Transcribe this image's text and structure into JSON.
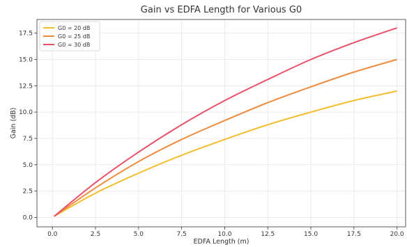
{
  "chart_data": {
    "type": "line",
    "title": "Gain vs EDFA Length for Various G0",
    "xlabel": "EDFA Length (m)",
    "ylabel": "Gain (dB)",
    "xlim": [
      -0.9,
      20.5
    ],
    "ylim": [
      -0.9,
      18.8
    ],
    "xticks": [
      0.0,
      2.5,
      5.0,
      7.5,
      10.0,
      12.5,
      15.0,
      17.5,
      20.0
    ],
    "xtick_labels": [
      "0.0",
      "2.5",
      "5.0",
      "7.5",
      "10.0",
      "12.5",
      "15.0",
      "17.5",
      "20.0"
    ],
    "yticks": [
      0.0,
      2.5,
      5.0,
      7.5,
      10.0,
      12.5,
      15.0,
      17.5
    ],
    "ytick_labels": [
      "0.0",
      "2.5",
      "5.0",
      "7.5",
      "10.0",
      "12.5",
      "15.0",
      "17.5"
    ],
    "grid": true,
    "legend_position": "top-left",
    "x": [
      0.1,
      2.5,
      5.0,
      7.5,
      10.0,
      12.5,
      15.0,
      17.5,
      20.0
    ],
    "series": [
      {
        "name": "G0 = 20 dB",
        "color": "#f4bd2e",
        "values": [
          0.1,
          2.3,
          4.2,
          5.9,
          7.4,
          8.8,
          10.0,
          11.1,
          12.0
        ]
      },
      {
        "name": "G0 = 25 dB",
        "color": "#f08b3e",
        "values": [
          0.1,
          2.8,
          5.3,
          7.4,
          9.2,
          10.9,
          12.4,
          13.8,
          15.0
        ]
      },
      {
        "name": "G0 = 30 dB",
        "color": "#e9506a",
        "values": [
          0.1,
          3.3,
          6.2,
          8.8,
          11.1,
          13.1,
          15.0,
          16.6,
          18.0
        ]
      }
    ]
  }
}
